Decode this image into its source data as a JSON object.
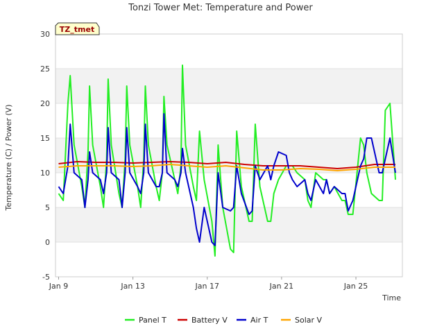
{
  "chart_data": {
    "type": "line",
    "title": "Tonzi Tower Met: Temperature and Power",
    "xlabel": "Time",
    "ylabel": "Temperature (C) / Power (V)",
    "badge": "TZ_tmet",
    "xlim": [
      "2023-01-08T20:00",
      "2023-01-27T12:00"
    ],
    "ylim": [
      -5,
      30
    ],
    "grid": true,
    "legend": "bottom",
    "x_ticks": [
      {
        "date": "2023-01-09",
        "label": "Jan 9"
      },
      {
        "date": "2023-01-13",
        "label": "Jan 13"
      },
      {
        "date": "2023-01-17",
        "label": "Jan 17"
      },
      {
        "date": "2023-01-21",
        "label": "Jan 21"
      },
      {
        "date": "2023-01-25",
        "label": "Jan 25"
      }
    ],
    "y_ticks": [
      -5,
      0,
      5,
      10,
      15,
      20,
      25,
      30
    ],
    "series": [
      {
        "name": "Panel T",
        "color": "#22ee22",
        "x": [
          "2023-01-09T00:00",
          "2023-01-09T06:00",
          "2023-01-09T12:00",
          "2023-01-09T15:00",
          "2023-01-09T20:00",
          "2023-01-10T06:00",
          "2023-01-10T10:00",
          "2023-01-10T14:00",
          "2023-01-10T16:00",
          "2023-01-10T20:00",
          "2023-01-11T06:00",
          "2023-01-11T10:00",
          "2023-01-11T14:00",
          "2023-01-11T16:00",
          "2023-01-11T20:00",
          "2023-01-12T06:00",
          "2023-01-12T10:00",
          "2023-01-12T14:00",
          "2023-01-12T16:00",
          "2023-01-12T20:00",
          "2023-01-13T06:00",
          "2023-01-13T10:00",
          "2023-01-13T14:00",
          "2023-01-13T16:00",
          "2023-01-13T20:00",
          "2023-01-14T06:00",
          "2023-01-14T10:00",
          "2023-01-14T14:00",
          "2023-01-14T16:00",
          "2023-01-14T20:00",
          "2023-01-15T06:00",
          "2023-01-15T10:00",
          "2023-01-15T14:00",
          "2023-01-15T16:00",
          "2023-01-15T20:00",
          "2023-01-16T06:00",
          "2023-01-16T10:00",
          "2023-01-16T14:00",
          "2023-01-16T20:00",
          "2023-01-17T06:00",
          "2023-01-17T10:00",
          "2023-01-17T14:00",
          "2023-01-17T20:00",
          "2023-01-18T06:00",
          "2023-01-18T10:00",
          "2023-01-18T14:00",
          "2023-01-18T20:00",
          "2023-01-19T06:00",
          "2023-01-19T10:00",
          "2023-01-19T14:00",
          "2023-01-19T20:00",
          "2023-01-20T06:00",
          "2023-01-20T10:00",
          "2023-01-20T14:00",
          "2023-01-20T20:00",
          "2023-01-21T06:00",
          "2023-01-21T10:00",
          "2023-01-21T14:00",
          "2023-01-21T20:00",
          "2023-01-22T06:00",
          "2023-01-22T10:00",
          "2023-01-22T14:00",
          "2023-01-22T20:00",
          "2023-01-23T06:00",
          "2023-01-23T10:00",
          "2023-01-23T14:00",
          "2023-01-23T20:00",
          "2023-01-24T06:00",
          "2023-01-24T10:00",
          "2023-01-24T14:00",
          "2023-01-24T20:00",
          "2023-01-25T06:00",
          "2023-01-25T10:00",
          "2023-01-25T14:00",
          "2023-01-25T20:00",
          "2023-01-26T06:00",
          "2023-01-26T10:00",
          "2023-01-26T14:00",
          "2023-01-26T20:00",
          "2023-01-27T03:00"
        ],
        "y": [
          7,
          6,
          20,
          24,
          14,
          8,
          5,
          13,
          22.5,
          14,
          8,
          5,
          12,
          23.5,
          14,
          7,
          5,
          12,
          22.5,
          14,
          8,
          5,
          12,
          22.5,
          14,
          8,
          6,
          10,
          21,
          14,
          9,
          7,
          11,
          25.5,
          14,
          8,
          6,
          16,
          9,
          3,
          -2,
          14,
          5,
          -1,
          -1.5,
          16,
          8,
          3,
          3,
          17,
          8,
          3,
          3,
          7,
          9,
          11,
          11,
          11,
          10,
          9,
          6,
          5,
          10,
          9,
          9,
          7,
          8,
          6,
          6,
          4,
          4,
          15,
          14,
          10,
          7,
          6,
          6,
          19,
          20,
          9
        ],
        "values": [
          7,
          6,
          20,
          24,
          14,
          8,
          5,
          13,
          22.5,
          14,
          8,
          5,
          12,
          23.5,
          14,
          7,
          5,
          12,
          22.5,
          14,
          8,
          5,
          12,
          22.5,
          14,
          8,
          6,
          10,
          21,
          14,
          9,
          7,
          11,
          25.5,
          14,
          8,
          6,
          16,
          9,
          3,
          -2,
          14,
          5,
          -1,
          -1.5,
          16,
          8,
          3,
          3,
          17,
          8,
          3,
          3,
          7,
          9,
          11,
          11,
          11,
          10,
          9,
          6,
          5,
          10,
          9,
          9,
          7,
          8,
          6,
          6,
          4,
          4,
          15,
          14,
          10,
          7,
          6,
          6,
          19,
          20,
          9
        ]
      },
      {
        "name": "Battery V",
        "color": "#cc0000",
        "x": [
          "2023-01-09T00:00",
          "2023-01-10T00:00",
          "2023-01-11T00:00",
          "2023-01-12T00:00",
          "2023-01-13T00:00",
          "2023-01-14T00:00",
          "2023-01-15T00:00",
          "2023-01-16T00:00",
          "2023-01-17T00:00",
          "2023-01-18T00:00",
          "2023-01-19T00:00",
          "2023-01-20T00:00",
          "2023-01-21T00:00",
          "2023-01-22T00:00",
          "2023-01-23T00:00",
          "2023-01-24T00:00",
          "2023-01-25T00:00",
          "2023-01-26T00:00",
          "2023-01-27T03:00"
        ],
        "y": [
          11.3,
          11.6,
          11.5,
          11.5,
          11.4,
          11.5,
          11.6,
          11.5,
          11.3,
          11.5,
          11.2,
          11.0,
          11.0,
          11.0,
          10.8,
          10.6,
          10.8,
          11.2,
          11.2
        ],
        "values": [
          11.3,
          11.6,
          11.5,
          11.5,
          11.4,
          11.5,
          11.6,
          11.5,
          11.3,
          11.5,
          11.2,
          11.0,
          11.0,
          11.0,
          10.8,
          10.6,
          10.8,
          11.2,
          11.2
        ]
      },
      {
        "name": "Air T",
        "color": "#0000cc",
        "x": [
          "2023-01-09T00:00",
          "2023-01-09T06:00",
          "2023-01-09T12:00",
          "2023-01-09T15:00",
          "2023-01-09T20:00",
          "2023-01-10T06:00",
          "2023-01-10T10:00",
          "2023-01-10T14:00",
          "2023-01-10T16:00",
          "2023-01-10T20:00",
          "2023-01-11T06:00",
          "2023-01-11T10:00",
          "2023-01-11T14:00",
          "2023-01-11T16:00",
          "2023-01-11T20:00",
          "2023-01-12T06:00",
          "2023-01-12T10:00",
          "2023-01-12T14:00",
          "2023-01-12T16:00",
          "2023-01-12T20:00",
          "2023-01-13T06:00",
          "2023-01-13T10:00",
          "2023-01-13T14:00",
          "2023-01-13T16:00",
          "2023-01-13T20:00",
          "2023-01-14T06:00",
          "2023-01-14T10:00",
          "2023-01-14T14:00",
          "2023-01-14T16:00",
          "2023-01-14T20:00",
          "2023-01-15T06:00",
          "2023-01-15T10:00",
          "2023-01-15T14:00",
          "2023-01-15T16:00",
          "2023-01-15T20:00",
          "2023-01-16T06:00",
          "2023-01-16T10:00",
          "2023-01-16T14:00",
          "2023-01-16T20:00",
          "2023-01-17T06:00",
          "2023-01-17T10:00",
          "2023-01-17T14:00",
          "2023-01-17T20:00",
          "2023-01-18T06:00",
          "2023-01-18T10:00",
          "2023-01-18T14:00",
          "2023-01-18T20:00",
          "2023-01-19T06:00",
          "2023-01-19T10:00",
          "2023-01-19T14:00",
          "2023-01-19T20:00",
          "2023-01-20T06:00",
          "2023-01-20T10:00",
          "2023-01-20T14:00",
          "2023-01-20T20:00",
          "2023-01-21T06:00",
          "2023-01-21T10:00",
          "2023-01-21T14:00",
          "2023-01-21T20:00",
          "2023-01-22T06:00",
          "2023-01-22T10:00",
          "2023-01-22T14:00",
          "2023-01-22T20:00",
          "2023-01-23T06:00",
          "2023-01-23T10:00",
          "2023-01-23T14:00",
          "2023-01-23T20:00",
          "2023-01-24T06:00",
          "2023-01-24T10:00",
          "2023-01-24T14:00",
          "2023-01-24T20:00",
          "2023-01-25T06:00",
          "2023-01-25T10:00",
          "2023-01-25T14:00",
          "2023-01-25T20:00",
          "2023-01-26T06:00",
          "2023-01-26T10:00",
          "2023-01-26T14:00",
          "2023-01-26T20:00",
          "2023-01-27T03:00"
        ],
        "y": [
          8,
          7,
          11,
          17,
          10,
          9,
          5,
          9,
          13,
          10,
          9,
          7,
          10,
          16.5,
          10,
          9,
          5,
          10,
          16.5,
          10,
          8,
          7,
          10,
          17,
          10,
          8,
          8,
          10,
          18.5,
          10,
          9,
          8,
          10,
          13.5,
          10,
          5,
          2,
          0,
          5,
          0,
          -0.5,
          10,
          5,
          4.5,
          5,
          11,
          7,
          4,
          4.5,
          11,
          9,
          11,
          9,
          11,
          13,
          12.5,
          10,
          9,
          8,
          9,
          7,
          6,
          9,
          7,
          9,
          7,
          8,
          7,
          7,
          4.5,
          6,
          11,
          12,
          15,
          15,
          10,
          10,
          12,
          15,
          10
        ],
        "values": [
          8,
          7,
          11,
          17,
          10,
          9,
          5,
          9,
          13,
          10,
          9,
          7,
          10,
          16.5,
          10,
          9,
          5,
          10,
          16.5,
          10,
          8,
          7,
          10,
          17,
          10,
          8,
          8,
          10,
          18.5,
          10,
          9,
          8,
          10,
          13.5,
          10,
          5,
          2,
          0,
          5,
          0,
          -0.5,
          10,
          5,
          4.5,
          5,
          11,
          7,
          4,
          4.5,
          11,
          9,
          11,
          9,
          11,
          13,
          12.5,
          10,
          9,
          8,
          9,
          7,
          6,
          9,
          7,
          9,
          7,
          8,
          7,
          7,
          4.5,
          6,
          11,
          12,
          15,
          15,
          10,
          10,
          12,
          15,
          10
        ]
      },
      {
        "name": "Solar V",
        "color": "#ffa500",
        "x": [
          "2023-01-09T00:00",
          "2023-01-10T00:00",
          "2023-01-11T00:00",
          "2023-01-12T00:00",
          "2023-01-13T00:00",
          "2023-01-14T00:00",
          "2023-01-15T00:00",
          "2023-01-16T00:00",
          "2023-01-17T00:00",
          "2023-01-18T00:00",
          "2023-01-19T00:00",
          "2023-01-20T00:00",
          "2023-01-21T00:00",
          "2023-01-22T00:00",
          "2023-01-23T00:00",
          "2023-01-24T00:00",
          "2023-01-25T00:00",
          "2023-01-26T00:00",
          "2023-01-27T03:00"
        ],
        "y": [
          10.8,
          11.0,
          11.0,
          11.0,
          10.9,
          11.0,
          11.2,
          11.0,
          10.8,
          11.0,
          10.7,
          10.4,
          10.4,
          10.6,
          10.5,
          10.3,
          10.5,
          10.8,
          10.8
        ],
        "values": [
          10.8,
          11.0,
          11.0,
          11.0,
          10.9,
          11.0,
          11.2,
          11.0,
          10.8,
          11.0,
          10.7,
          10.4,
          10.4,
          10.6,
          10.5,
          10.3,
          10.5,
          10.8,
          10.8
        ]
      }
    ]
  }
}
